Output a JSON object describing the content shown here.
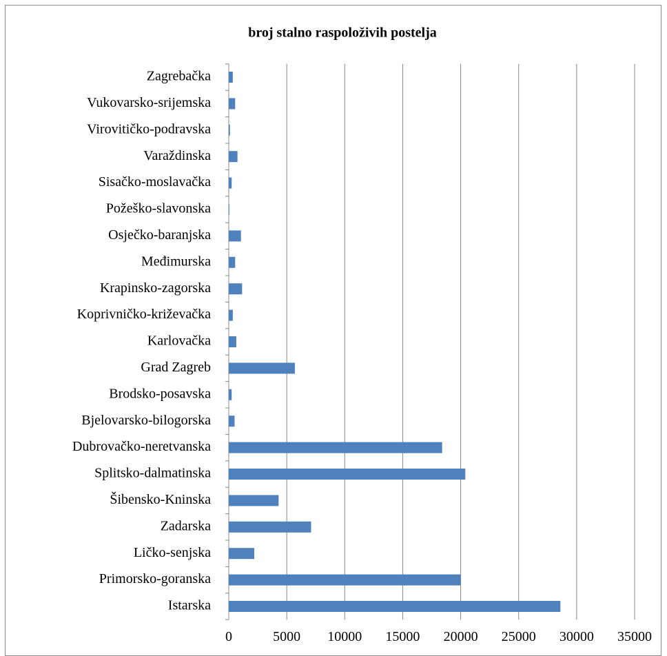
{
  "chart_data": {
    "type": "bar",
    "orientation": "horizontal",
    "title": "broj stalno raspoloživih postelja",
    "categories": [
      "Istarska",
      "Primorsko-goranska",
      "Ličko-senjska",
      "Zadarska",
      "Šibensko-Kninska",
      "Splitsko-dalmatinska",
      "Dubrovačko-neretvanska",
      "Bjelovarsko-bilogorska",
      "Brodsko-posavska",
      "Grad Zagreb",
      "Karlovačka",
      "Koprivničko-križevačka",
      "Krapinsko-zagorska",
      "Međimurska",
      "Osječko-baranjska",
      "Požeško-slavonska",
      "Sisačko-moslavačka",
      "Varaždinska",
      "Virovitičko-podravska",
      "Vukovarsko-srijemska",
      "Zagrebačka"
    ],
    "values": [
      28600,
      20000,
      2200,
      7100,
      4300,
      20400,
      18400,
      500,
      250,
      5700,
      650,
      350,
      1150,
      550,
      1050,
      50,
      250,
      750,
      100,
      550,
      350
    ],
    "color": "#4f81bd",
    "xlim": [
      0,
      35000
    ],
    "xticks": [
      0,
      5000,
      10000,
      15000,
      20000,
      25000,
      30000,
      35000
    ],
    "grid": true
  }
}
